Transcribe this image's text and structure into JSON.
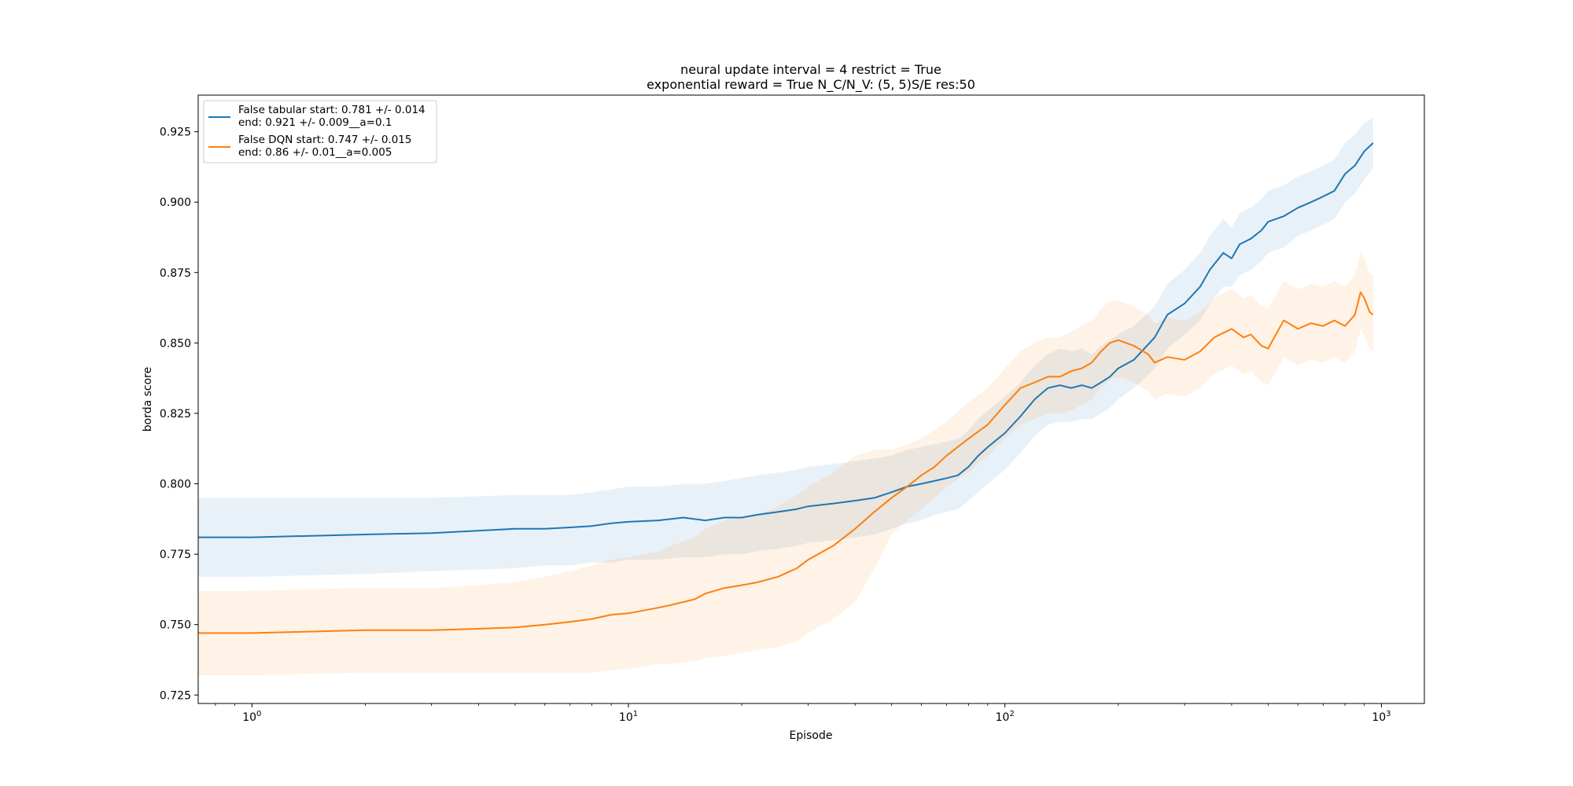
{
  "chart_data": {
    "type": "line",
    "title_lines": [
      "neural update interval = 4 restrict = True",
      "exponential reward = True N_C/N_V: (5, 5)S/E res:50"
    ],
    "xlabel": "Episode",
    "ylabel": "borda score",
    "x_scale": "log",
    "xlim": [
      0.72,
      1300
    ],
    "ylim": [
      0.722,
      0.938
    ],
    "x_ticks": [
      {
        "value": 1,
        "base": "10",
        "exp": "0"
      },
      {
        "value": 10,
        "base": "10",
        "exp": "1"
      },
      {
        "value": 100,
        "base": "10",
        "exp": "2"
      },
      {
        "value": 1000,
        "base": "10",
        "exp": "3"
      }
    ],
    "y_ticks": [
      "0.725",
      "0.750",
      "0.775",
      "0.800",
      "0.825",
      "0.850",
      "0.875",
      "0.900",
      "0.925"
    ],
    "grid": false,
    "legend_position": "upper-left",
    "series": [
      {
        "name_lines": [
          "False tabular start: 0.781 +/- 0.014",
          "end: 0.921 +/- 0.009__a=0.1"
        ],
        "color": "#1f77b4",
        "band_color": "#1f77b4",
        "x": [
          0.72,
          1,
          2,
          3,
          5,
          6,
          7,
          8,
          9,
          10,
          12,
          14,
          16,
          18,
          20,
          22,
          25,
          28,
          30,
          35,
          40,
          45,
          50,
          55,
          60,
          65,
          70,
          75,
          80,
          85,
          90,
          100,
          110,
          120,
          130,
          140,
          150,
          160,
          170,
          180,
          190,
          200,
          220,
          250,
          270,
          300,
          330,
          350,
          380,
          400,
          420,
          450,
          480,
          500,
          550,
          600,
          650,
          700,
          750,
          800,
          850,
          900,
          950
        ],
        "y": [
          0.781,
          0.781,
          0.782,
          0.7825,
          0.784,
          0.784,
          0.7845,
          0.785,
          0.786,
          0.7865,
          0.787,
          0.788,
          0.787,
          0.788,
          0.788,
          0.789,
          0.79,
          0.791,
          0.792,
          0.793,
          0.794,
          0.795,
          0.797,
          0.799,
          0.8,
          0.801,
          0.802,
          0.803,
          0.806,
          0.81,
          0.813,
          0.818,
          0.824,
          0.83,
          0.834,
          0.835,
          0.834,
          0.835,
          0.834,
          0.836,
          0.838,
          0.841,
          0.844,
          0.852,
          0.86,
          0.864,
          0.87,
          0.876,
          0.882,
          0.88,
          0.885,
          0.887,
          0.89,
          0.893,
          0.895,
          0.898,
          0.9,
          0.902,
          0.904,
          0.91,
          0.913,
          0.918,
          0.921
        ],
        "lower": [
          0.767,
          0.767,
          0.768,
          0.769,
          0.77,
          0.771,
          0.771,
          0.772,
          0.772,
          0.773,
          0.773,
          0.774,
          0.774,
          0.775,
          0.775,
          0.776,
          0.777,
          0.778,
          0.779,
          0.78,
          0.781,
          0.782,
          0.784,
          0.786,
          0.787,
          0.789,
          0.79,
          0.791,
          0.794,
          0.797,
          0.8,
          0.805,
          0.811,
          0.817,
          0.821,
          0.822,
          0.822,
          0.823,
          0.823,
          0.825,
          0.827,
          0.83,
          0.834,
          0.841,
          0.848,
          0.853,
          0.858,
          0.864,
          0.87,
          0.87,
          0.874,
          0.876,
          0.879,
          0.882,
          0.884,
          0.888,
          0.89,
          0.892,
          0.894,
          0.9,
          0.903,
          0.908,
          0.912
        ],
        "upper": [
          0.795,
          0.795,
          0.795,
          0.795,
          0.796,
          0.796,
          0.796,
          0.797,
          0.798,
          0.799,
          0.799,
          0.8,
          0.8,
          0.801,
          0.802,
          0.803,
          0.804,
          0.805,
          0.806,
          0.807,
          0.808,
          0.809,
          0.81,
          0.812,
          0.813,
          0.814,
          0.815,
          0.816,
          0.819,
          0.823,
          0.826,
          0.831,
          0.836,
          0.842,
          0.846,
          0.848,
          0.847,
          0.848,
          0.846,
          0.849,
          0.851,
          0.853,
          0.856,
          0.863,
          0.871,
          0.876,
          0.882,
          0.888,
          0.894,
          0.891,
          0.896,
          0.898,
          0.901,
          0.904,
          0.906,
          0.909,
          0.911,
          0.913,
          0.915,
          0.921,
          0.924,
          0.928,
          0.93
        ]
      },
      {
        "name_lines": [
          "False DQN start: 0.747 +/- 0.015",
          "end: 0.86 +/- 0.01__a=0.005"
        ],
        "color": "#ff7f0e",
        "band_color": "#ff7f0e",
        "x": [
          0.72,
          1,
          2,
          3,
          4,
          5,
          6,
          7,
          8,
          9,
          10,
          12,
          13,
          15,
          16,
          18,
          20,
          22,
          25,
          28,
          30,
          35,
          40,
          45,
          50,
          55,
          60,
          65,
          70,
          80,
          90,
          100,
          110,
          120,
          130,
          140,
          150,
          160,
          170,
          180,
          190,
          200,
          220,
          240,
          250,
          270,
          300,
          330,
          360,
          400,
          430,
          450,
          480,
          500,
          550,
          600,
          650,
          700,
          750,
          800,
          850,
          880,
          900,
          930,
          950
        ],
        "y": [
          0.747,
          0.747,
          0.748,
          0.748,
          0.7485,
          0.749,
          0.75,
          0.751,
          0.752,
          0.7535,
          0.754,
          0.756,
          0.757,
          0.759,
          0.761,
          0.763,
          0.764,
          0.765,
          0.767,
          0.77,
          0.773,
          0.778,
          0.784,
          0.79,
          0.795,
          0.799,
          0.803,
          0.806,
          0.81,
          0.816,
          0.821,
          0.828,
          0.834,
          0.836,
          0.838,
          0.838,
          0.84,
          0.841,
          0.843,
          0.847,
          0.85,
          0.851,
          0.849,
          0.846,
          0.843,
          0.845,
          0.844,
          0.847,
          0.852,
          0.855,
          0.852,
          0.853,
          0.849,
          0.848,
          0.858,
          0.855,
          0.857,
          0.856,
          0.858,
          0.856,
          0.86,
          0.868,
          0.866,
          0.861,
          0.86
        ],
        "lower": [
          0.732,
          0.732,
          0.733,
          0.733,
          0.733,
          0.733,
          0.733,
          0.733,
          0.733,
          0.734,
          0.734,
          0.736,
          0.736,
          0.737,
          0.738,
          0.739,
          0.74,
          0.741,
          0.742,
          0.744,
          0.747,
          0.752,
          0.758,
          0.77,
          0.782,
          0.787,
          0.791,
          0.795,
          0.799,
          0.804,
          0.81,
          0.816,
          0.821,
          0.823,
          0.825,
          0.825,
          0.826,
          0.828,
          0.83,
          0.834,
          0.837,
          0.838,
          0.836,
          0.833,
          0.83,
          0.832,
          0.831,
          0.834,
          0.839,
          0.842,
          0.839,
          0.84,
          0.836,
          0.835,
          0.845,
          0.842,
          0.844,
          0.843,
          0.845,
          0.843,
          0.847,
          0.855,
          0.853,
          0.848,
          0.847
        ],
        "upper": [
          0.762,
          0.762,
          0.763,
          0.763,
          0.764,
          0.765,
          0.767,
          0.769,
          0.771,
          0.773,
          0.774,
          0.776,
          0.778,
          0.781,
          0.784,
          0.787,
          0.788,
          0.789,
          0.792,
          0.796,
          0.799,
          0.804,
          0.81,
          0.812,
          0.812,
          0.814,
          0.816,
          0.819,
          0.822,
          0.829,
          0.834,
          0.841,
          0.847,
          0.85,
          0.852,
          0.852,
          0.854,
          0.856,
          0.858,
          0.862,
          0.865,
          0.865,
          0.863,
          0.86,
          0.857,
          0.859,
          0.858,
          0.861,
          0.866,
          0.869,
          0.866,
          0.867,
          0.863,
          0.862,
          0.872,
          0.869,
          0.871,
          0.87,
          0.872,
          0.87,
          0.874,
          0.882,
          0.88,
          0.875,
          0.874
        ]
      }
    ]
  }
}
